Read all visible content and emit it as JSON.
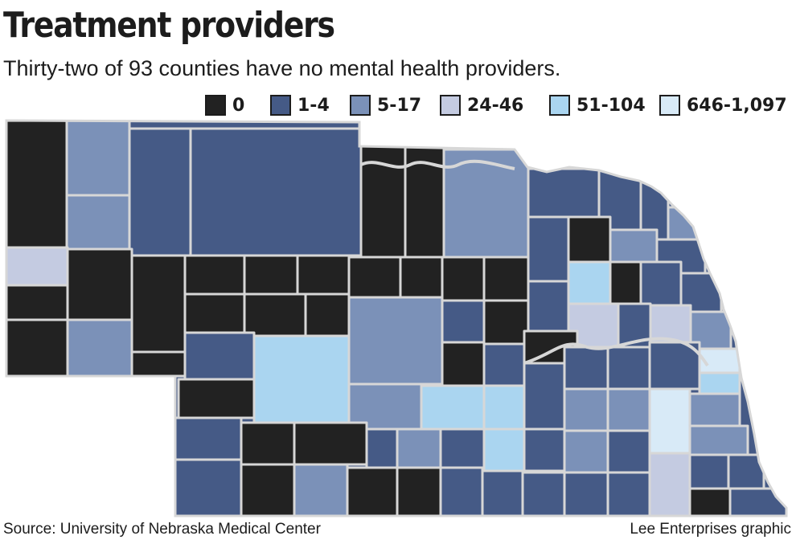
{
  "header": {
    "title": "Treatment providers",
    "subtitle": "Thirty-two of 93 counties have no mental health providers."
  },
  "legend": {
    "items": [
      {
        "key": "none",
        "label": "0",
        "color": "#222222"
      },
      {
        "key": "low",
        "label": "1-4",
        "color": "#455a86"
      },
      {
        "key": "mid",
        "label": "5-17",
        "color": "#7b91b8"
      },
      {
        "key": "upper",
        "label": "24-46",
        "color": "#c4cbe1"
      },
      {
        "key": "high",
        "label": "51-104",
        "color": "#aad5f0"
      },
      {
        "key": "top",
        "label": "646-1,097",
        "color": "#d8eaf7"
      }
    ]
  },
  "map": {
    "region": "Nebraska",
    "county_count": 93,
    "counties_with_no_providers": 32,
    "border_color": "#d7d7d7"
  },
  "footer": {
    "source": "Source: University of Nebraska Medical Center",
    "credit": "Lee Enterprises graphic"
  }
}
